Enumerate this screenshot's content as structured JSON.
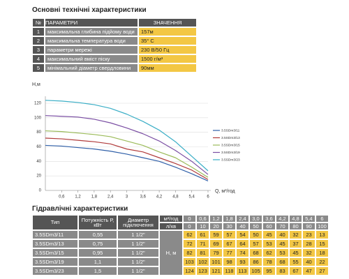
{
  "header": {
    "title": "Основні технічні характеристики"
  },
  "specs": {
    "columns": [
      "№",
      "ПАРАМЕТРИ",
      "ЗНАЧЕННЯ"
    ],
    "rows": [
      [
        "1",
        "максимальна глибина підйому води",
        "157м"
      ],
      [
        "2",
        "максимальна температура води",
        "35° C"
      ],
      [
        "3",
        "параметри мережі",
        "230 В/50 Гц"
      ],
      [
        "4",
        "максимальний вміст піску",
        "1500 г/м³"
      ],
      [
        "5",
        "мінімальний діаметр свердловини",
        "90мм"
      ]
    ]
  },
  "chart_data": {
    "type": "line",
    "y_label": "Н,м",
    "x_label": "Q, м³/год",
    "x": [
      0,
      0.6,
      1.2,
      1.8,
      2.4,
      3,
      3.6,
      4.2,
      4.8,
      5.4,
      6
    ],
    "xlim": [
      0,
      6
    ],
    "xticks": [
      {
        "value": 0.6,
        "label": "0,6"
      },
      {
        "value": 1.2,
        "label": "1,2"
      },
      {
        "value": 1.8,
        "label": "1,8"
      },
      {
        "value": 2.4,
        "label": "2,4"
      },
      3,
      {
        "value": 3.6,
        "label": "3,6"
      },
      {
        "value": 4.2,
        "label": "4,2"
      },
      {
        "value": 4.8,
        "label": "4,8"
      },
      {
        "value": 5.4,
        "label": "5,4"
      },
      6
    ],
    "ylim": [
      0,
      120
    ],
    "yticks": [
      0,
      20,
      40,
      60,
      80,
      100,
      120
    ],
    "grid": true,
    "series": [
      {
        "name": "3.5SDm3/11",
        "color": "#2f5fa8",
        "values": [
          62,
          61,
          59,
          57,
          54,
          50,
          45,
          40,
          32,
          23,
          13
        ]
      },
      {
        "name": "3.5SDm3/13",
        "color": "#b03a3a",
        "values": [
          72,
          71,
          69,
          67,
          64,
          57,
          53,
          45,
          37,
          28,
          15
        ]
      },
      {
        "name": "3.5SDm3/15",
        "color": "#9bbb59",
        "values": [
          82,
          81,
          79,
          77,
          74,
          68,
          62,
          53,
          45,
          32,
          18
        ]
      },
      {
        "name": "3.5SDm3/19",
        "color": "#7a4ea3",
        "values": [
          103,
          102,
          101,
          98,
          93,
          86,
          78,
          68,
          55,
          40,
          22
        ]
      },
      {
        "name": "3.5SDm3/23",
        "color": "#3aaec6",
        "values": [
          124,
          123,
          121,
          118,
          113,
          105,
          95,
          83,
          67,
          47,
          27
        ]
      }
    ]
  },
  "hydraulics": {
    "title": "Гідравлічні характеристики",
    "columns": [
      "Тип",
      "Потужність Р, кВт",
      "Диаметр підключення"
    ],
    "head_label": "Н, м",
    "flow_units": [
      "м³/год",
      "л/хв"
    ],
    "flow_m3h": [
      "0",
      "0,6",
      "1,2",
      "1,8",
      "2,4",
      "3,0",
      "3,6",
      "4,2",
      "4,8",
      "5,4",
      "6"
    ],
    "flow_lmin": [
      "0",
      "10",
      "20",
      "30",
      "40",
      "50",
      "60",
      "70",
      "80",
      "90",
      "100"
    ],
    "rows": [
      {
        "type": "3.5SDm3/11",
        "power": "0,55",
        "connection": "1 1/2\"",
        "heads": [
          "62",
          "61",
          "59",
          "57",
          "54",
          "50",
          "45",
          "40",
          "32",
          "23",
          "13"
        ]
      },
      {
        "type": "3.5SDm3/13",
        "power": "0,75",
        "connection": "1 1/2\"",
        "heads": [
          "72",
          "71",
          "69",
          "67",
          "64",
          "57",
          "53",
          "45",
          "37",
          "28",
          "15"
        ]
      },
      {
        "type": "3.5SDm3/15",
        "power": "0,95",
        "connection": "1 1/2\"",
        "heads": [
          "82",
          "81",
          "79",
          "77",
          "74",
          "68",
          "62",
          "53",
          "45",
          "32",
          "18"
        ]
      },
      {
        "type": "3.5SDm3/19",
        "power": "1,1",
        "connection": "1 1/2\"",
        "heads": [
          "103",
          "102",
          "101",
          "98",
          "93",
          "86",
          "78",
          "68",
          "55",
          "40",
          "22"
        ]
      },
      {
        "type": "3.5SDm3/23",
        "power": "1,5",
        "connection": "1 1/2\"",
        "heads": [
          "124",
          "123",
          "121",
          "118",
          "113",
          "105",
          "95",
          "83",
          "67",
          "47",
          "27"
        ]
      }
    ]
  }
}
